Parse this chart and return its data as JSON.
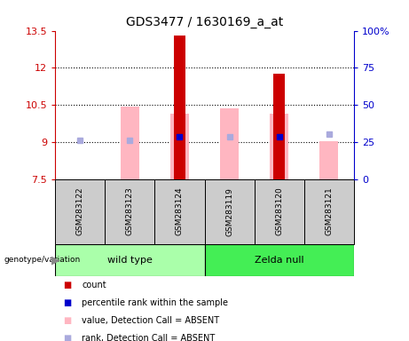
{
  "title": "GDS3477 / 1630169_a_at",
  "samples": [
    "GSM283122",
    "GSM283123",
    "GSM283124",
    "GSM283119",
    "GSM283120",
    "GSM283121"
  ],
  "ylim_left": [
    7.5,
    13.5
  ],
  "ylim_right": [
    0,
    100
  ],
  "yticks_left": [
    7.5,
    9.0,
    10.5,
    12.0,
    13.5
  ],
  "ytick_labels_left": [
    "7.5",
    "9",
    "10.5",
    "12",
    "13.5"
  ],
  "yticks_right": [
    0,
    25,
    50,
    75,
    100
  ],
  "ytick_labels_right": [
    "0",
    "25",
    "50",
    "75",
    "100%"
  ],
  "red_bar_values": [
    7.5,
    7.5,
    13.32,
    7.5,
    11.75,
    7.5
  ],
  "red_bar_base": 7.5,
  "pink_bar_top": [
    null,
    10.42,
    10.15,
    10.35,
    10.15,
    9.02
  ],
  "pink_bar_base": 7.5,
  "blue_square_value": [
    null,
    null,
    9.22,
    null,
    9.22,
    null
  ],
  "lightblue_square_value": [
    9.08,
    9.08,
    null,
    9.2,
    null,
    9.32
  ],
  "red_color": "#cc0000",
  "pink_color": "#ffb6c1",
  "blue_color": "#0000cc",
  "lightblue_color": "#aaaadd",
  "left_tick_color": "#cc0000",
  "right_tick_color": "#0000cc",
  "red_bar_width": 0.22,
  "pink_bar_width": 0.38,
  "wt_color": "#aaffaa",
  "zn_color": "#44ee55",
  "sample_box_color": "#cccccc",
  "grid_dotted_ticks": [
    9.0,
    10.5,
    12.0
  ],
  "legend_items": [
    [
      "#cc0000",
      "count"
    ],
    [
      "#0000cc",
      "percentile rank within the sample"
    ],
    [
      "#ffb6c1",
      "value, Detection Call = ABSENT"
    ],
    [
      "#aaaadd",
      "rank, Detection Call = ABSENT"
    ]
  ]
}
